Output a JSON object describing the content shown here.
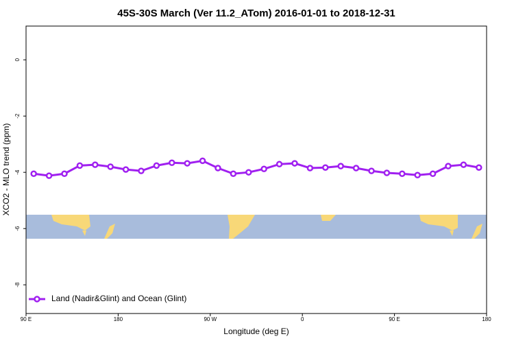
{
  "chart_data": {
    "type": "line",
    "title": "45S-30S March (Ver 11.2_ATom)   2016-01-01 to 2018-12-31",
    "xlabel": "Longitude (deg E)",
    "ylabel": "XCO2 - MLO trend (ppm)",
    "x": [
      97.5,
      112.5,
      127.5,
      142.5,
      157.5,
      172.5,
      187.5,
      202.5,
      217.5,
      232.5,
      247.5,
      262.5,
      277.5,
      292.5,
      307.5,
      322.5,
      337.5,
      352.5,
      367.5,
      382.5,
      397.5,
      412.5,
      427.5,
      442.5,
      457.5,
      472.5,
      487.5,
      502.5,
      517.5,
      532.5
    ],
    "series": [
      {
        "name": "Land (Nadir&Glint) and Ocean (Glint)",
        "color": "#a020f0",
        "values": [
          -4.05,
          -4.12,
          -4.05,
          -3.76,
          -3.73,
          -3.8,
          -3.9,
          -3.95,
          -3.76,
          -3.66,
          -3.68,
          -3.59,
          -3.85,
          -4.05,
          -4.0,
          -3.88,
          -3.71,
          -3.68,
          -3.85,
          -3.83,
          -3.78,
          -3.85,
          -3.95,
          -4.02,
          -4.05,
          -4.1,
          -4.05,
          -3.78,
          -3.73,
          -3.83
        ]
      }
    ],
    "xlim": [
      90,
      540
    ],
    "xticks": [
      {
        "value": 90,
        "label": "90 E"
      },
      180,
      {
        "value": 270,
        "label": "90 W"
      },
      {
        "value": 360,
        "label": "0"
      },
      {
        "value": 450,
        "label": "90 E"
      },
      {
        "value": 540,
        "label": "180"
      }
    ],
    "ylim": [
      -9.02,
      1.2
    ],
    "yticks": [
      0,
      -2,
      -4,
      -6,
      -8
    ],
    "legend": "bottom-left"
  }
}
